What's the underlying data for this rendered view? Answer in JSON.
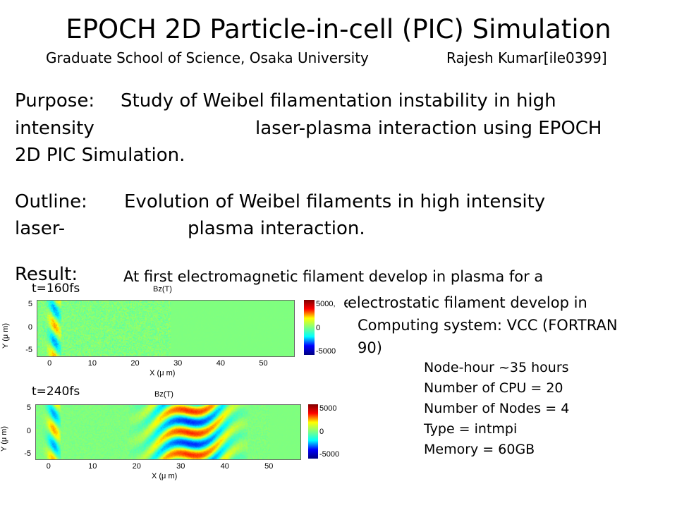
{
  "title": "EPOCH 2D Particle-in-cell (PIC) Simulation",
  "subtitle": "Graduate School of Science, Osaka University",
  "author": "Rajesh Kumar[ile0399]",
  "purpose": {
    "label": "Purpose:",
    "line1": "Study of Weibel filamentation instability in high",
    "line2a": "intensity",
    "line2b": "laser-plasma interaction using EPOCH",
    "line3": "2D PIC Simulation."
  },
  "outline": {
    "label": "Outline:",
    "line1": "Evolution of Weibel filaments in high intensity",
    "line2a": "laser-",
    "line2b": "plasma interaction."
  },
  "result": {
    "label": "Result:",
    "line1": "At first electromagnetic filament develop in plasma for a",
    "line2": "electrostatic filament develop in",
    "line2_partial": "e"
  },
  "computing": {
    "line1": "Computing system: VCC (FORTRAN",
    "line2": "90)"
  },
  "specs": [
    "Node-hour  ~35 hours",
    "Number of CPU = 20",
    "Number of Nodes = 4",
    "Type = intmpi",
    "Memory = 60GB"
  ],
  "plots": [
    {
      "time": "t=160fs",
      "title": "Bz(T)",
      "xlabel": "X (μ m)",
      "ylabel": "Y (μ m)",
      "xticks": [
        "0",
        "10",
        "20",
        "30",
        "40",
        "50"
      ],
      "yticks": [
        "5",
        "0",
        "-5"
      ],
      "cbar_ticks": [
        "5000,",
        "0",
        "-5000"
      ],
      "colormap": "jet"
    },
    {
      "time": "t=240fs",
      "title": "Bz(T)",
      "xlabel": "X (μ m)",
      "ylabel": "Y (μ m)",
      "xticks": [
        "0",
        "10",
        "20",
        "30",
        "40",
        "50"
      ],
      "yticks": [
        "5",
        "0",
        "-5"
      ],
      "cbar_ticks": [
        "5000",
        "0",
        "-5000"
      ],
      "colormap": "jet"
    }
  ]
}
